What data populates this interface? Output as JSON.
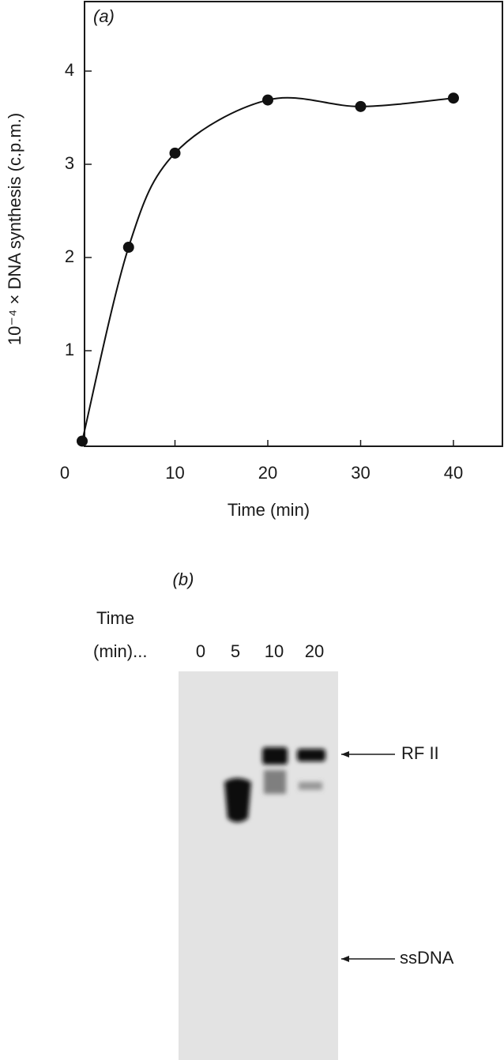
{
  "chart_data": {
    "type": "line",
    "panel_label": "(a)",
    "x_label": "Time (min)",
    "y_label": "10⁻⁴ × DNA synthesis (c.p.m.)",
    "x": [
      0,
      5,
      10,
      20,
      30,
      40
    ],
    "values": [
      0.03,
      2.11,
      3.12,
      3.69,
      3.62,
      3.71
    ],
    "color": "#111111",
    "xlim": [
      0,
      45
    ],
    "ylim": [
      0,
      4.75
    ],
    "xticks": [
      0,
      10,
      20,
      30,
      40
    ],
    "yticks": [
      1,
      2,
      3,
      4
    ]
  },
  "gel_panel": {
    "label": "(b)",
    "time_label": "Time",
    "unit_label": "(min)...",
    "lanes": [
      "0",
      "5",
      "10",
      "20"
    ],
    "bands": [
      "RF II",
      "ssDNA"
    ]
  }
}
